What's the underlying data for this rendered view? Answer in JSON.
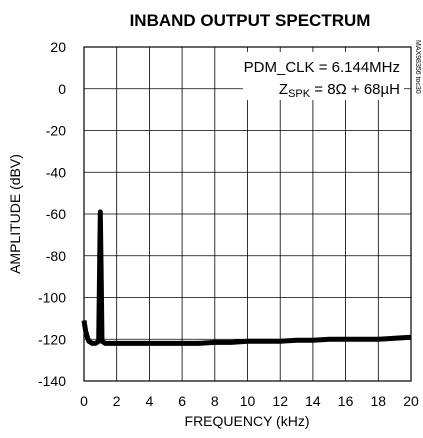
{
  "chart_data": {
    "type": "line",
    "title": "INBAND OUTPUT SPECTRUM",
    "xlabel": "FREQUENCY (kHz)",
    "ylabel": "AMPLITUDE (dBV)",
    "xlim": [
      0,
      20
    ],
    "ylim": [
      -140,
      20
    ],
    "xticks": [
      "0",
      "2",
      "4",
      "6",
      "8",
      "10",
      "12",
      "14",
      "16",
      "18",
      "20"
    ],
    "yticks": [
      "20",
      "0",
      "-20",
      "-40",
      "-60",
      "-80",
      "-100",
      "-120",
      "-140"
    ],
    "grid": true,
    "annotations": {
      "line1": "PDM_CLK = 6.144MHz",
      "line2_prefix": "Z",
      "line2_sub": "SPK",
      "line2_suffix": " = 8Ω + 68µH"
    },
    "side_id": "MAX98356 toc30",
    "series": [
      {
        "color": "#000000",
        "x": [
          0,
          0.1,
          0.2,
          0.3,
          0.5,
          0.7,
          0.9,
          0.95,
          1.0,
          1.05,
          1.1,
          1.3,
          1.6,
          2,
          3,
          4,
          5,
          6,
          7,
          8,
          9,
          10,
          11,
          12,
          13,
          14,
          15,
          16,
          17,
          18,
          19,
          20
        ],
        "y": [
          -111,
          -116,
          -119,
          -121,
          -122,
          -122,
          -121,
          -90,
          -59,
          -90,
          -121,
          -122,
          -122,
          -122,
          -122,
          -122,
          -122,
          -122,
          -122,
          -121.5,
          -121.5,
          -121,
          -121,
          -121,
          -120.5,
          -120.5,
          -120,
          -120,
          -120,
          -120,
          -119.5,
          -119
        ]
      }
    ]
  }
}
